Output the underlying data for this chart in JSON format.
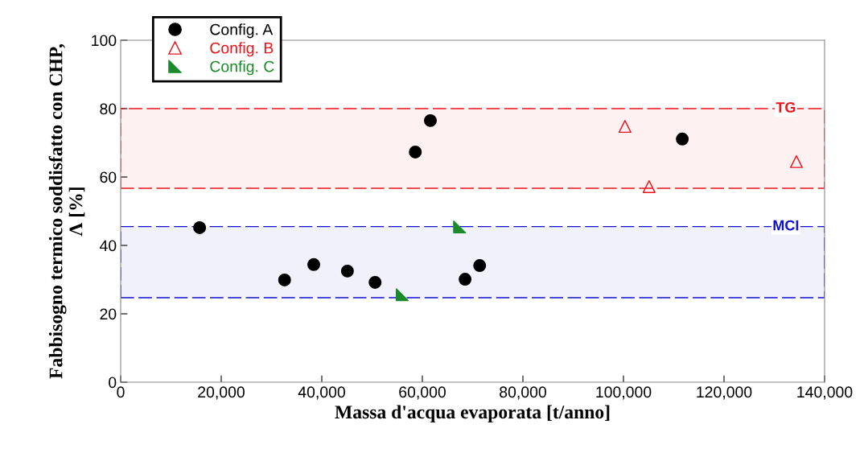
{
  "chart_data": {
    "type": "scatter",
    "xlabel": "Massa d'acqua evaporata [t/anno]",
    "ylabel": "Fabbisogno termico soddisfatto con CHP,\nΛ [%]",
    "xlim": [
      0,
      140000
    ],
    "ylim": [
      0,
      100
    ],
    "xticks": [
      {
        "value": 0,
        "label": "0"
      },
      {
        "value": 20000,
        "label": "20,000"
      },
      {
        "value": 40000,
        "label": "40,000"
      },
      {
        "value": 60000,
        "label": "60,000"
      },
      {
        "value": 80000,
        "label": "80,000"
      },
      {
        "value": 100000,
        "label": "100,000"
      },
      {
        "value": 120000,
        "label": "120,000"
      },
      {
        "value": 140000,
        "label": "140,000"
      }
    ],
    "yticks": [
      0,
      20,
      40,
      60,
      80,
      100
    ],
    "series": [
      {
        "name": "Config. A",
        "color": "#000000",
        "x": [
          15700,
          32600,
          38400,
          45100,
          50600,
          58600,
          61600,
          68500,
          71400,
          111700
        ],
        "values": [
          45.2,
          29.9,
          34.4,
          32.5,
          29.2,
          67.3,
          76.5,
          30.1,
          34.1,
          71.1
        ]
      },
      {
        "name": "Config. B",
        "color": "#e8141b",
        "x": [
          100300,
          105100,
          134400
        ],
        "values": [
          74.8,
          57.2,
          64.5
        ]
      },
      {
        "name": "Config. C",
        "color": "#1a8a2a",
        "x": [
          56000,
          67400
        ],
        "values": [
          25.6,
          45.4
        ]
      }
    ],
    "bands": [
      {
        "axis": "y",
        "from": 56.7,
        "to": 80,
        "label": "TG",
        "color": "#e8141b"
      },
      {
        "axis": "y",
        "from": 24.7,
        "to": 45.5,
        "label": "MCI",
        "color": "#1010d0"
      }
    ],
    "grid": false,
    "legend": "top left"
  }
}
